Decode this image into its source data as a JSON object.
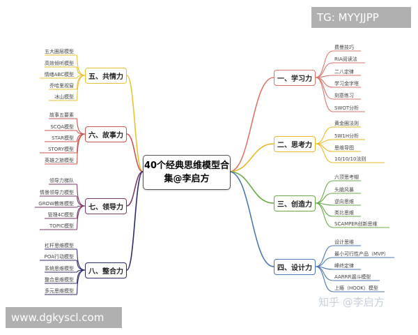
{
  "center": {
    "line1": "40个经典思维模型合",
    "line2": "集@李启方"
  },
  "branches": [
    {
      "label": "一、学习力",
      "color": "#d9756d",
      "side": "right",
      "leaves": [
        "费曼技巧",
        "RIA阅读法",
        "二八定律",
        "学习金字塔",
        "刻意练习",
        "SWOT分析"
      ]
    },
    {
      "label": "二、思考力",
      "color": "#e6b822",
      "side": "right",
      "leaves": [
        "黄金圈法则",
        "5W1H分析",
        "思维导图",
        "10/10/10法则"
      ]
    },
    {
      "label": "三、创造力",
      "color": "#6aa84a",
      "side": "right",
      "leaves": [
        "六顶思考帽",
        "头脑风暴",
        "逆向思维",
        "类比思维",
        "SCAMPER创新思维"
      ]
    },
    {
      "label": "四、设计力",
      "color": "#4a76ad",
      "side": "right",
      "leaves": [
        "设计思维",
        "最小可行性产品（MVP）",
        "峰终定律",
        "AARRR漏斗模型",
        "上瘾（HOOK）模型"
      ]
    },
    {
      "label": "五、共情力",
      "color": "#e8c232",
      "side": "left",
      "leaves": [
        "五大圈层模型",
        "高效倾听模型",
        "情绪ABC模型",
        "乔哈里视窗",
        "冰山模型"
      ]
    },
    {
      "label": "六、故事力",
      "color": "#c95550",
      "side": "left",
      "leaves": [
        "故事五要素",
        "SCQA模型",
        "STAR模型",
        "STORY模型",
        "英雄之旅模型"
      ]
    },
    {
      "label": "七、领导力",
      "color": "#7a3a68",
      "side": "left",
      "leaves": [
        "领导力梯队",
        "情景领导力模型",
        "GROW教练模型",
        "管理4C模型",
        "TOPIC模型"
      ]
    },
    {
      "label": "八、整合力",
      "color": "#2c2c6a",
      "side": "left",
      "leaves": [
        "杠杆思维模型",
        "POA行动模型",
        "系统思维模型",
        "整合思维模型",
        "多元思维模型"
      ]
    }
  ],
  "watermarks": {
    "top_right": "TG: MYYJJPP",
    "bottom_left": "www.dgkyscl.com",
    "zhihu": "知乎 @李启方"
  }
}
